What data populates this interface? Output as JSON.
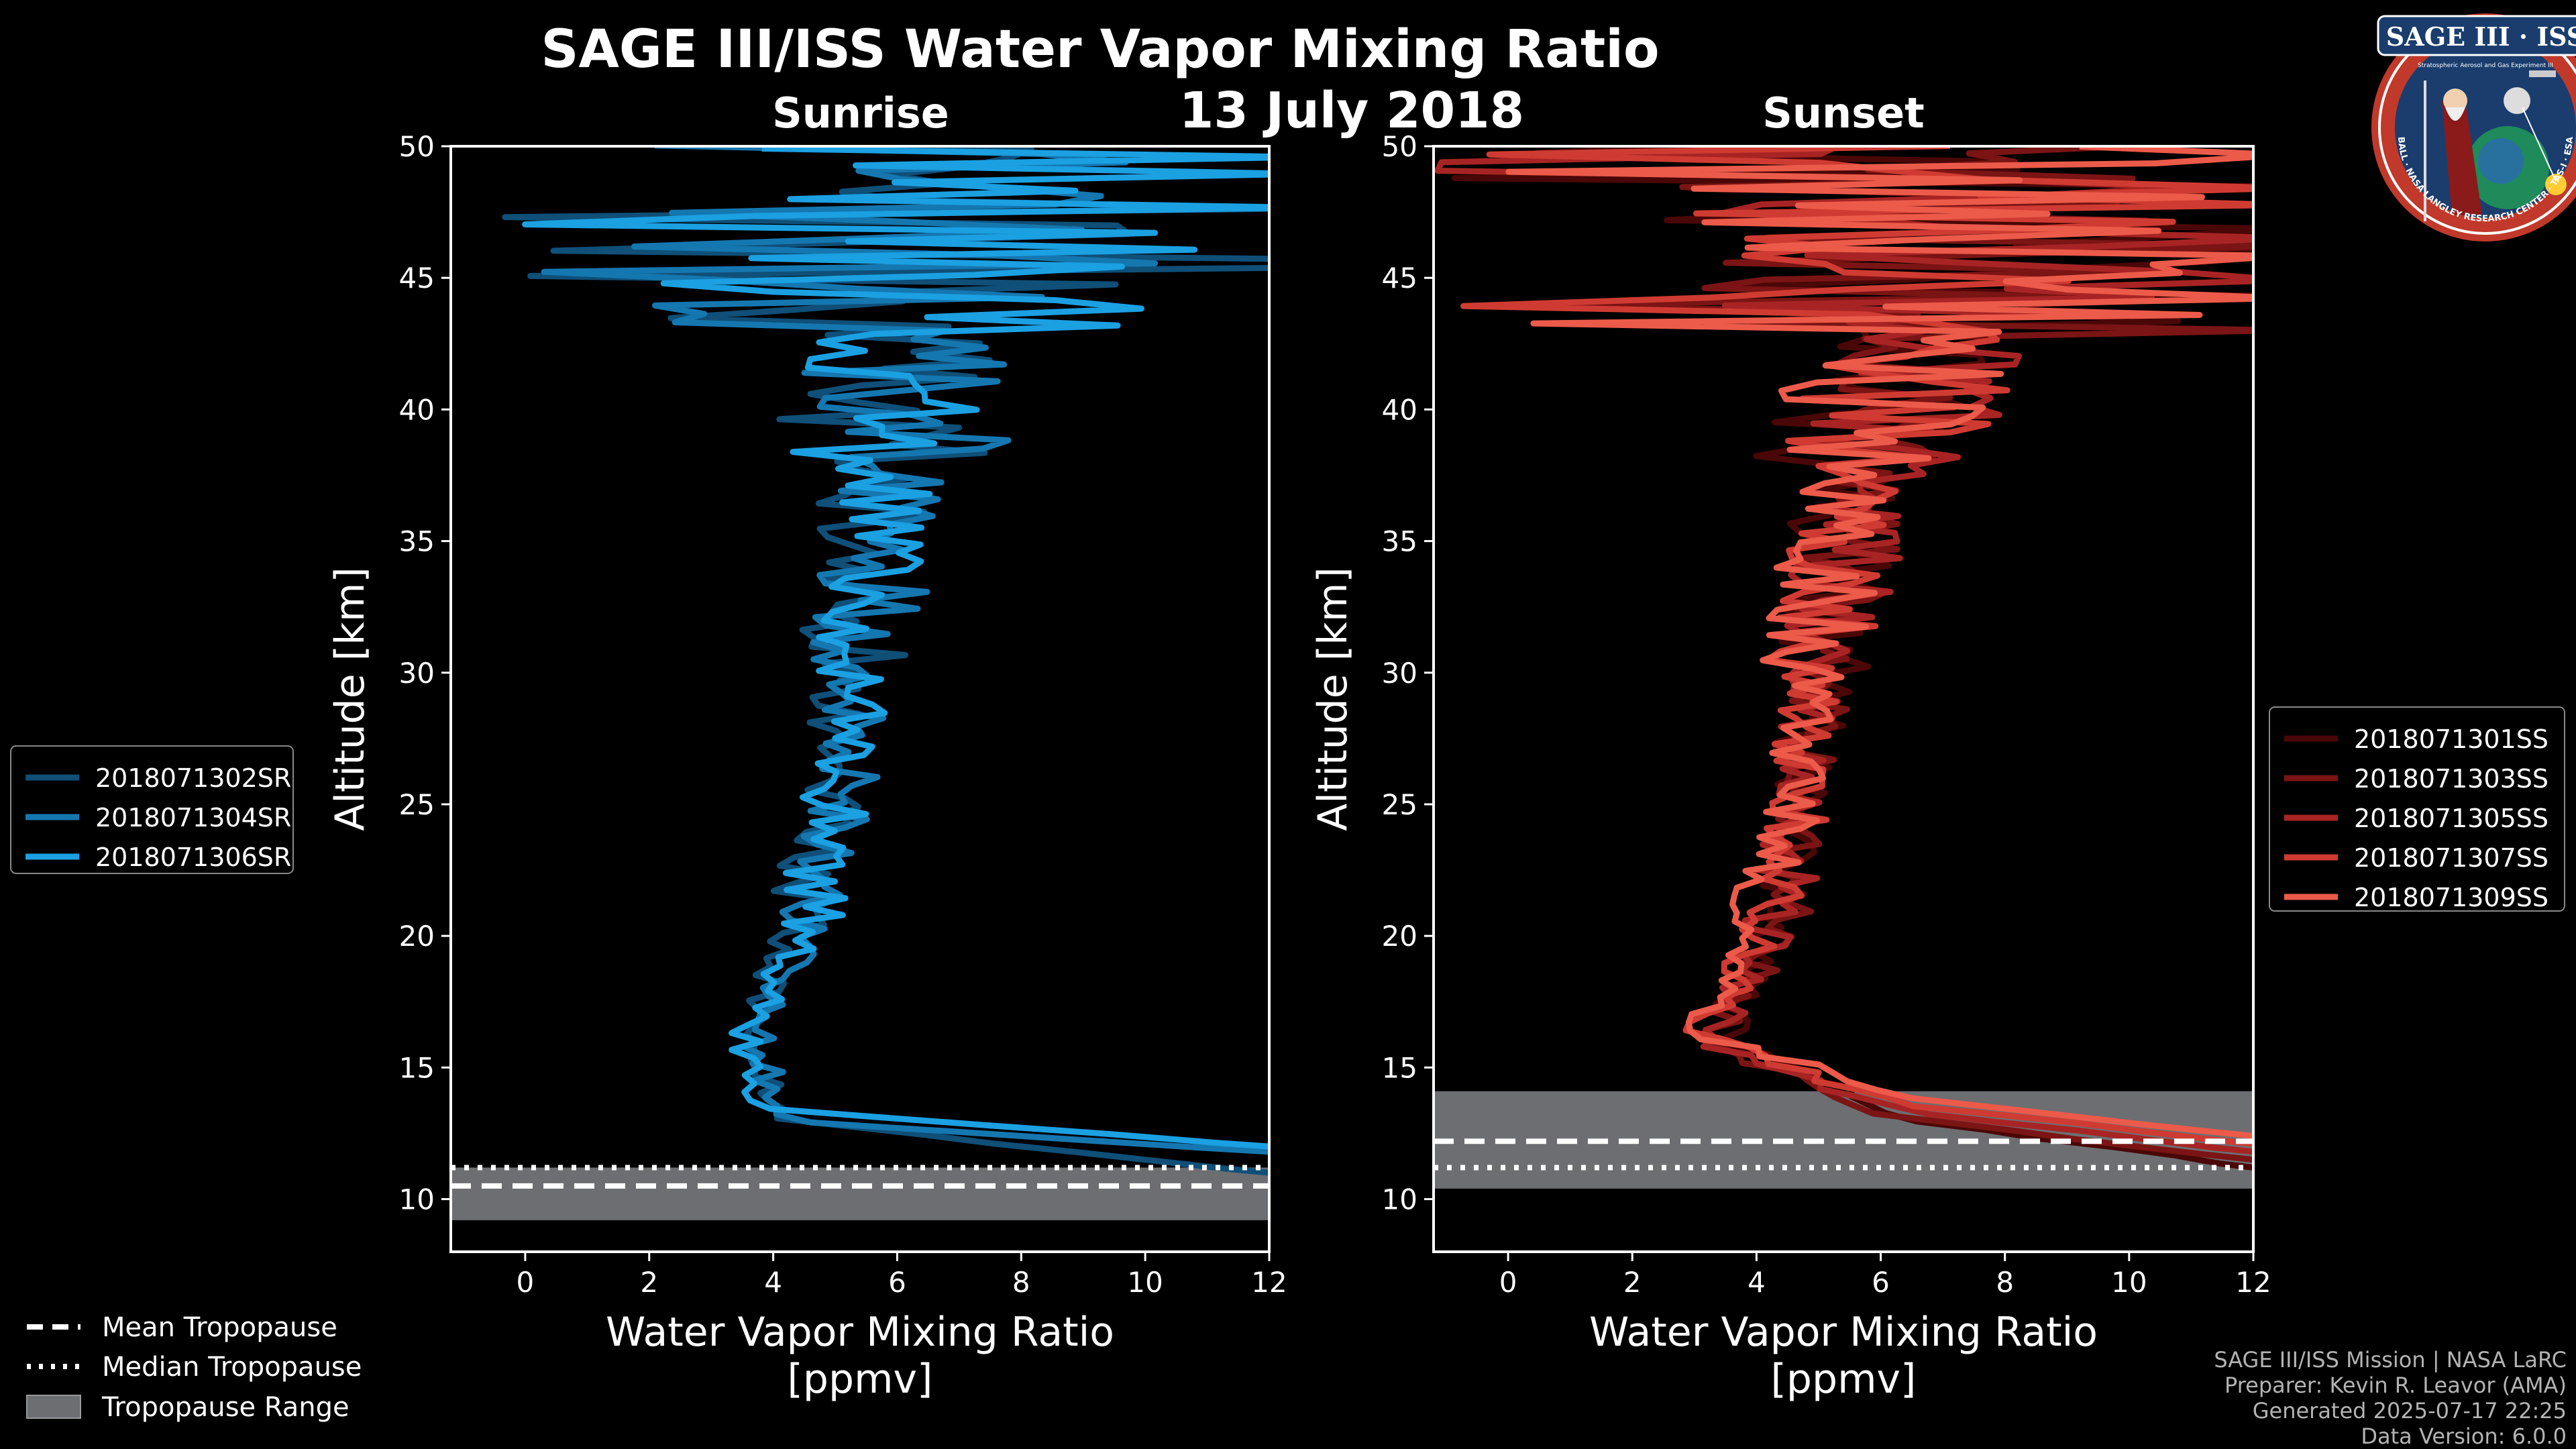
{
  "title": "SAGE III/ISS Water Vapor Mixing Ratio",
  "date": "13 July 2018",
  "logo": {
    "text": "SAGE III · ISS",
    "subtext": "Stratospheric Aerosol and Gas Experiment III",
    "ring_text": "BALL · NASA LANGLEY RESEARCH CENTER · TAS-I · ESA",
    "colors": {
      "ring": "#c0392b",
      "inner": "#1a3d6e",
      "white": "#ffffff"
    }
  },
  "footer": [
    "SAGE III/ISS Mission | NASA LaRC",
    "Preparer: Kevin R. Leavor (AMA)",
    "Generated 2025-07-17 22:25",
    "Data Version: 6.0.0"
  ],
  "tropopause_legend": {
    "mean": "Mean Tropopause",
    "median": "Median Tropopause",
    "range": "Tropopause Range"
  },
  "chart_data": [
    {
      "type": "line",
      "id": "sunrise",
      "subtitle": "Sunrise",
      "xlabel": "Water Vapor Mixing Ratio\n[ppmv]",
      "ylabel": "Altitude [km]",
      "xlim": [
        -1.2,
        12
      ],
      "ylim": [
        8,
        50
      ],
      "xticks": [
        0,
        2,
        4,
        6,
        8,
        10,
        12
      ],
      "yticks": [
        10,
        15,
        20,
        25,
        30,
        35,
        40,
        45,
        50
      ],
      "legend_position": "left",
      "tropopause": {
        "mean": 10.5,
        "median": 11.2,
        "range": [
          9.2,
          11.2
        ]
      },
      "series": [
        {
          "name": "2018071302SR",
          "color": "#0f4f78",
          "seed": 11,
          "profile": [
            [
              12,
              11.0
            ],
            [
              4.2,
              13
            ],
            [
              3.6,
              16
            ],
            [
              4.3,
              20
            ],
            [
              4.9,
              25
            ],
            [
              5.2,
              30
            ],
            [
              5.5,
              35
            ],
            [
              5.8,
              40
            ],
            [
              5.9,
              45
            ],
            [
              5.9,
              50
            ]
          ]
        },
        {
          "name": "2018071304SR",
          "color": "#1577b0",
          "seed": 23,
          "profile": [
            [
              12,
              11.8
            ],
            [
              4.0,
              13
            ],
            [
              3.8,
              16
            ],
            [
              4.5,
              20
            ],
            [
              5.1,
              25
            ],
            [
              5.4,
              30
            ],
            [
              5.7,
              35
            ],
            [
              6.1,
              40
            ],
            [
              6.3,
              45
            ],
            [
              6.1,
              50
            ]
          ]
        },
        {
          "name": "2018071306SR",
          "color": "#1ba0e2",
          "seed": 37,
          "profile": [
            [
              12,
              12.0
            ],
            [
              3.7,
              13.5
            ],
            [
              3.6,
              16.5
            ],
            [
              4.5,
              20
            ],
            [
              5.0,
              25
            ],
            [
              5.4,
              30
            ],
            [
              5.6,
              35
            ],
            [
              6.0,
              40
            ],
            [
              6.4,
              45
            ],
            [
              6.2,
              50
            ]
          ]
        }
      ]
    },
    {
      "type": "line",
      "id": "sunset",
      "subtitle": "Sunset",
      "xlabel": "Water Vapor Mixing Ratio\n[ppmv]",
      "ylabel": "Altitude [km]",
      "xlim": [
        -1.2,
        12
      ],
      "ylim": [
        8,
        50
      ],
      "xticks": [
        0,
        2,
        4,
        6,
        8,
        10,
        12
      ],
      "yticks": [
        10,
        15,
        20,
        25,
        30,
        35,
        40,
        45,
        50
      ],
      "legend_position": "right",
      "tropopause": {
        "mean": 12.2,
        "median": 11.2,
        "range": [
          10.4,
          14.1
        ]
      },
      "series": [
        {
          "name": "2018071301SS",
          "color": "#4a0707",
          "seed": 41,
          "profile": [
            [
              12,
              11.2
            ],
            [
              6.5,
              13
            ],
            [
              3.4,
              16
            ],
            [
              4.2,
              20
            ],
            [
              4.7,
              25
            ],
            [
              5.0,
              30
            ],
            [
              5.3,
              35
            ],
            [
              6.0,
              40
            ],
            [
              6.8,
              45
            ],
            [
              7.0,
              50
            ]
          ]
        },
        {
          "name": "2018071303SS",
          "color": "#7b1414",
          "seed": 53,
          "profile": [
            [
              12,
              11.5
            ],
            [
              6.0,
              13.2
            ],
            [
              3.3,
              16
            ],
            [
              4.4,
              20
            ],
            [
              4.9,
              25
            ],
            [
              5.1,
              30
            ],
            [
              5.4,
              35
            ],
            [
              6.2,
              40
            ],
            [
              7.0,
              45
            ],
            [
              7.2,
              50
            ]
          ]
        },
        {
          "name": "2018071305SS",
          "color": "#a82424",
          "seed": 67,
          "profile": [
            [
              12,
              11.8
            ],
            [
              6.3,
              13.4
            ],
            [
              3.2,
              16
            ],
            [
              4.3,
              20
            ],
            [
              4.8,
              25
            ],
            [
              5.0,
              30
            ],
            [
              5.5,
              35
            ],
            [
              6.3,
              40
            ],
            [
              7.2,
              45
            ],
            [
              7.0,
              50
            ]
          ]
        },
        {
          "name": "2018071307SS",
          "color": "#cf3b32",
          "seed": 79,
          "profile": [
            [
              12,
              12.1
            ],
            [
              6.4,
              13.6
            ],
            [
              3.1,
              16.2
            ],
            [
              4.1,
              20
            ],
            [
              4.7,
              25
            ],
            [
              4.9,
              30
            ],
            [
              5.3,
              35
            ],
            [
              6.1,
              40
            ],
            [
              7.1,
              45
            ],
            [
              6.9,
              50
            ]
          ]
        },
        {
          "name": "2018071309SS",
          "color": "#ec5a4a",
          "seed": 97,
          "profile": [
            [
              12,
              12.4
            ],
            [
              6.7,
              13.8
            ],
            [
              3.0,
              16.3
            ],
            [
              4.0,
              20
            ],
            [
              4.6,
              25
            ],
            [
              4.9,
              30
            ],
            [
              5.2,
              35
            ],
            [
              6.0,
              40
            ],
            [
              6.9,
              45
            ],
            [
              6.8,
              50
            ]
          ]
        }
      ]
    }
  ]
}
